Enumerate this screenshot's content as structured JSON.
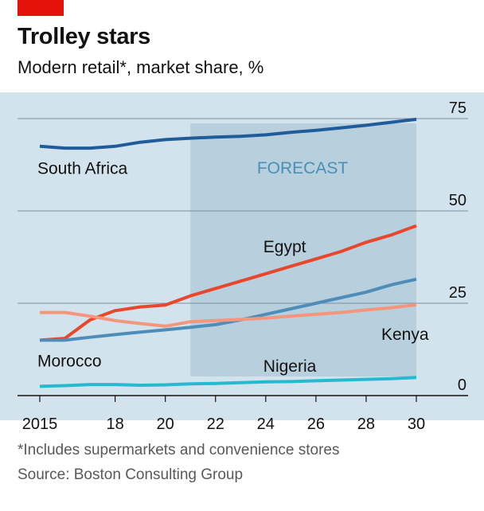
{
  "header": {
    "title": "Trolley stars",
    "subtitle": "Modern retail*, market share, %"
  },
  "footer": {
    "footnote": "*Includes supermarkets and convenience stores",
    "source": "Source: Boston Consulting Group"
  },
  "colors": {
    "accent_tag": "#e3120b",
    "panel_background": "#d3e3ed",
    "forecast_band": "#b8cfdd",
    "forecast_label": "#4a90b4"
  },
  "chart_data": {
    "type": "line",
    "title": "Trolley stars",
    "subtitle": "Modern retail*, market share, %",
    "xlabel": "",
    "ylabel": "",
    "xlim": [
      2015,
      2030
    ],
    "ylim": [
      0,
      75
    ],
    "x_ticks": [
      {
        "value": 2015,
        "label": "2015"
      },
      {
        "value": 2018,
        "label": "18"
      },
      {
        "value": 2020,
        "label": "20"
      },
      {
        "value": 2022,
        "label": "22"
      },
      {
        "value": 2024,
        "label": "24"
      },
      {
        "value": 2026,
        "label": "26"
      },
      {
        "value": 2028,
        "label": "28"
      },
      {
        "value": 2030,
        "label": "30"
      }
    ],
    "y_ticks": [
      {
        "value": 0,
        "label": "0"
      },
      {
        "value": 25,
        "label": "25"
      },
      {
        "value": 50,
        "label": "50"
      },
      {
        "value": 75,
        "label": "75"
      }
    ],
    "grid": true,
    "forecast": {
      "label": "FORECAST",
      "from": 2021,
      "to": 2030
    },
    "x": [
      2015,
      2016,
      2017,
      2018,
      2019,
      2020,
      2021,
      2022,
      2023,
      2024,
      2025,
      2026,
      2027,
      2028,
      2029,
      2030
    ],
    "series": [
      {
        "name": "South Africa",
        "color": "#1f5c99",
        "label_anchor": {
          "x": 2015,
          "y": 61.5
        },
        "values": [
          67.5,
          67,
          67,
          67.5,
          68.6,
          69.3,
          69.7,
          70,
          70.2,
          70.6,
          71.3,
          71.8,
          72.5,
          73.2,
          74,
          74.8
        ]
      },
      {
        "name": "Egypt",
        "color": "#e8472b",
        "label_anchor": {
          "x": 2024,
          "y": 40.3
        },
        "values": [
          15,
          15.5,
          20.5,
          23,
          24,
          24.5,
          27,
          29,
          31,
          33,
          35,
          37,
          39,
          41.5,
          43.5,
          46
        ]
      },
      {
        "name": "Morocco",
        "color": "#4f8db9",
        "label_anchor": {
          "x": 2015,
          "y": 9.4
        },
        "values": [
          15,
          15,
          15.8,
          16.5,
          17.2,
          17.8,
          18.5,
          19.2,
          20.5,
          22,
          23.5,
          25,
          26.5,
          28,
          30,
          31.5
        ]
      },
      {
        "name": "Kenya",
        "color": "#f4957c",
        "label_anchor": {
          "x": 2028.7,
          "y": 16.6
        },
        "values": [
          22.5,
          22.5,
          21.5,
          20.3,
          19.5,
          18.8,
          20,
          20.3,
          20.6,
          21,
          21.5,
          22,
          22.5,
          23.2,
          23.8,
          24.6
        ]
      },
      {
        "name": "Nigeria",
        "color": "#27b9cf",
        "label_anchor": {
          "x": 2024,
          "y": 8.0
        },
        "values": [
          2.5,
          2.7,
          3,
          3,
          2.8,
          2.9,
          3.2,
          3.3,
          3.5,
          3.7,
          3.8,
          4,
          4.2,
          4.4,
          4.6,
          4.9
        ]
      }
    ]
  }
}
